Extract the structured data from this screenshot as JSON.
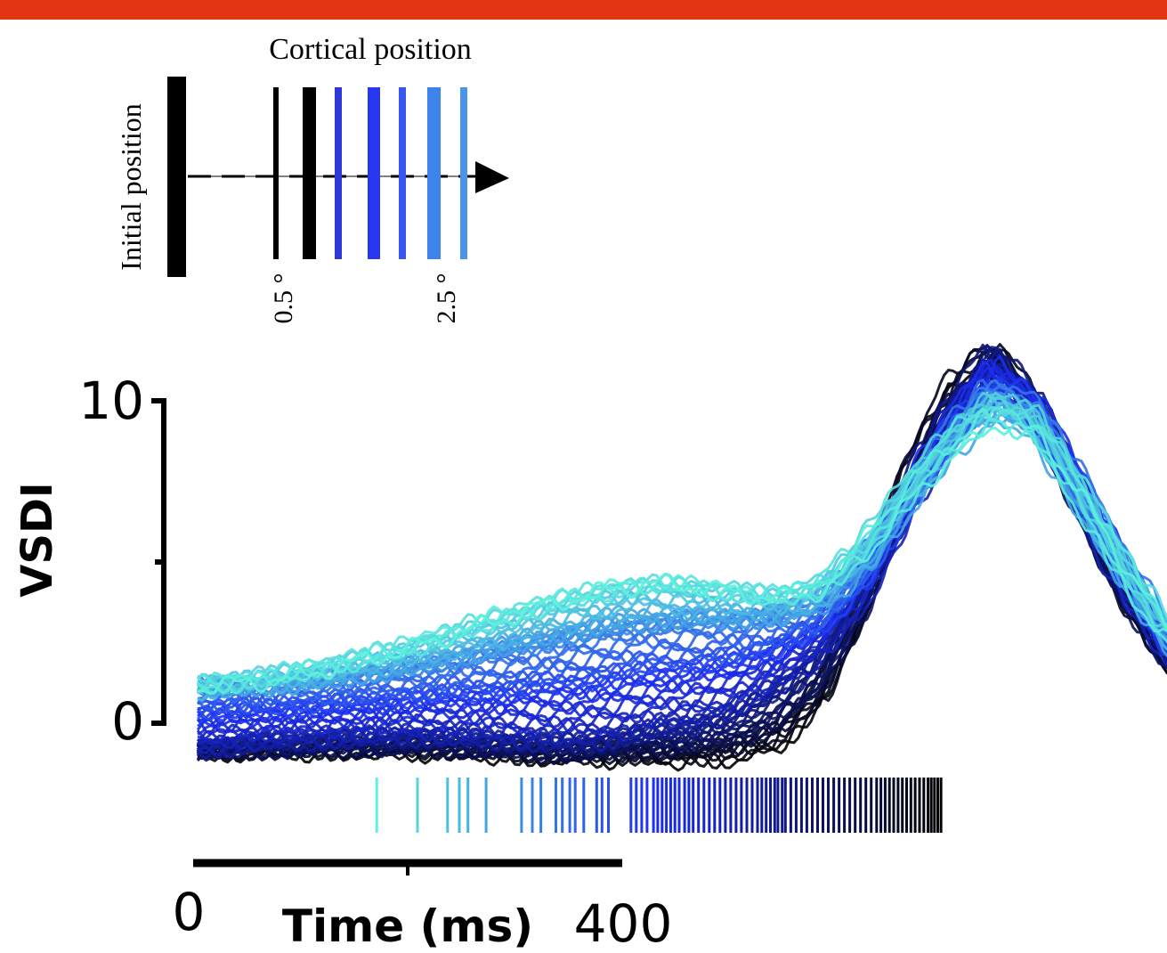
{
  "colors": {
    "top_bar": "#e33512",
    "axis": "#000000",
    "palette_near": "#000000",
    "palette_mid": "#1b2cf0",
    "palette_far": "#5cf2dc"
  },
  "inset": {
    "title": "Cortical position",
    "side_label": "Initial position",
    "tick_label_near": "0.5 °",
    "tick_label_far": "2.5 °"
  },
  "chart_data": {
    "type": "line",
    "title": "",
    "ylabel": "VSDI",
    "xlabel": "Time (ms)",
    "xlim": [
      0,
      400
    ],
    "ylim": [
      0,
      10
    ],
    "y_ticks": [
      "10",
      "0"
    ],
    "x_ticks": [
      "0",
      "400"
    ],
    "series_groups": [
      {
        "t": [
          0,
          60,
          120,
          200,
          280,
          330,
          380,
          420,
          460,
          500,
          540,
          580,
          620,
          660,
          700,
          740,
          780,
          820,
          860,
          900,
          935
        ],
        "v": [
          -0.9,
          -0.9,
          -0.9,
          -0.9,
          -1.0,
          -1.1,
          -1.1,
          -1.1,
          -1.2,
          -1.1,
          -0.8,
          0.5,
          3.5,
          7.5,
          10.2,
          11.4,
          9.6,
          6.8,
          4.0,
          2.0,
          0.8
        ]
      },
      {
        "t": [
          0,
          60,
          120,
          200,
          280,
          330,
          380,
          420,
          460,
          500,
          540,
          580,
          620,
          660,
          700,
          740,
          780,
          820,
          860,
          900,
          935
        ],
        "v": [
          -0.8,
          -0.6,
          -0.5,
          -0.4,
          -0.5,
          -0.6,
          -0.5,
          -0.2,
          0.0,
          0.4,
          1.2,
          2.2,
          4.0,
          6.8,
          9.3,
          11.2,
          9.9,
          7.3,
          4.6,
          2.5,
          1.2
        ]
      },
      {
        "t": [
          0,
          60,
          120,
          200,
          280,
          330,
          380,
          420,
          460,
          500,
          540,
          580,
          620,
          660,
          700,
          740,
          780,
          820,
          860,
          900,
          935
        ],
        "v": [
          1.0,
          1.1,
          1.2,
          1.5,
          1.9,
          2.2,
          2.5,
          2.7,
          2.8,
          2.9,
          3.1,
          3.5,
          4.8,
          6.8,
          8.8,
          10.2,
          9.6,
          7.4,
          5.0,
          2.9,
          1.6
        ]
      },
      {
        "t": [
          0,
          60,
          120,
          200,
          280,
          330,
          380,
          420,
          460,
          500,
          540,
          580,
          620,
          660,
          700,
          740,
          780,
          820,
          860,
          900,
          935
        ],
        "v": [
          1.2,
          1.4,
          1.8,
          2.5,
          3.4,
          3.9,
          4.3,
          4.5,
          4.4,
          4.2,
          4.0,
          4.3,
          5.5,
          7.2,
          8.6,
          9.6,
          9.2,
          7.2,
          5.0,
          3.0,
          1.8
        ]
      }
    ],
    "raster_ticks": [
      167,
      205,
      233,
      244,
      252,
      269,
      302,
      312,
      320,
      334,
      340,
      347,
      352,
      360,
      372,
      377,
      383,
      404,
      409,
      414,
      419,
      425,
      429,
      433,
      437,
      441,
      445,
      449,
      454,
      458,
      462,
      467,
      472,
      477,
      482,
      487,
      492,
      497,
      502,
      507,
      512,
      517,
      522,
      526,
      530,
      534,
      538,
      541,
      545,
      548,
      553,
      558,
      563,
      568,
      573,
      578,
      583,
      588,
      593,
      598,
      603,
      608,
      613,
      618,
      623,
      628,
      633,
      637,
      641,
      645,
      649,
      653,
      657,
      661,
      665,
      669,
      673,
      677,
      681,
      684,
      687,
      690,
      693
    ]
  }
}
